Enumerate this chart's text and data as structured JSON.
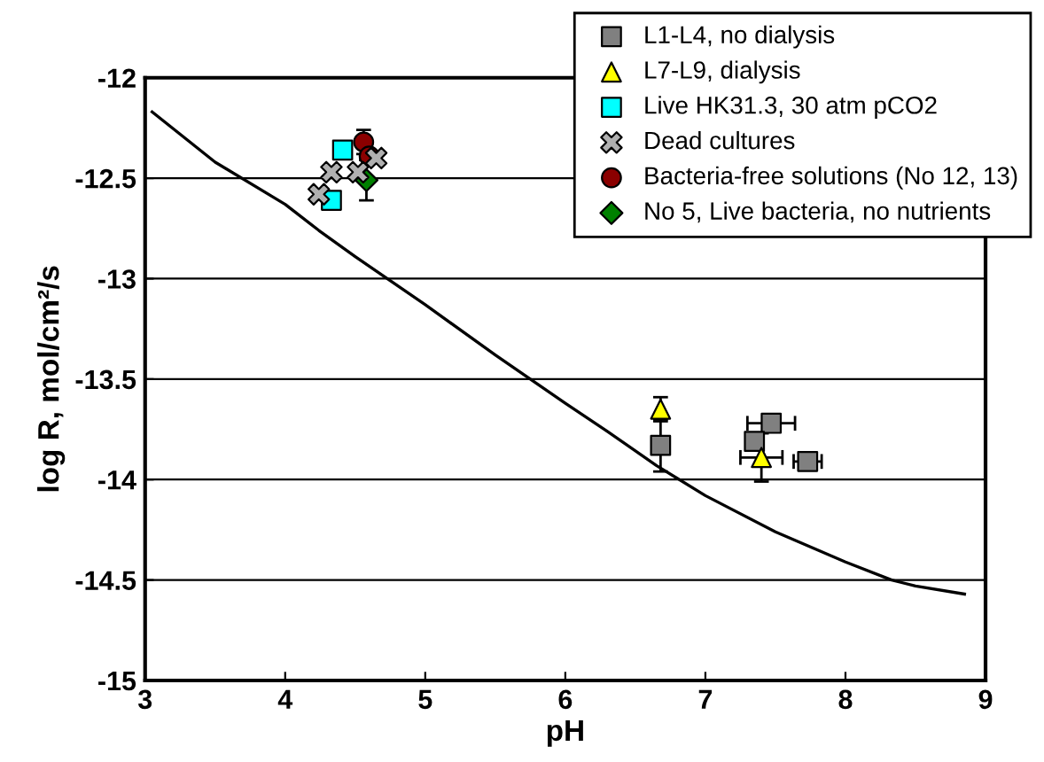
{
  "chart_data": {
    "type": "scatter",
    "xlabel": "pH",
    "ylabel": "log R, mol/cm²/s",
    "xlim": [
      3,
      9
    ],
    "ylim": [
      -15,
      -12
    ],
    "xticks": [
      3,
      4,
      5,
      6,
      7,
      8,
      9
    ],
    "yticks": [
      -15,
      -14.5,
      -14,
      -13.5,
      -13,
      -12.5,
      -12
    ],
    "grid": "y",
    "legend": "top right",
    "series": [
      {
        "name": "L1-L4, no dialysis",
        "color": "#808080",
        "marker": "square",
        "x": [
          6.68,
          7.47,
          7.35,
          7.73
        ],
        "values": [
          -13.83,
          -13.72,
          -13.81,
          -13.91
        ],
        "errors": [
          0.13,
          null,
          null,
          null
        ],
        "xerrors": [
          0.05,
          0.17,
          0.05,
          0.1
        ]
      },
      {
        "name": "L7-L9, dialysis",
        "color": "#ffff00",
        "marker": "triangle",
        "x": [
          6.68,
          7.4
        ],
        "values": [
          -13.65,
          -13.89
        ],
        "errors": [
          0.06,
          0.12
        ],
        "xerrors": [
          null,
          0.15
        ]
      },
      {
        "name": "Live HK31.3, 30 atm pCO2",
        "color": "#00ffff",
        "marker": "square",
        "x": [
          4.41,
          4.33
        ],
        "values": [
          -12.36,
          -12.61
        ]
      },
      {
        "name": "Dead cultures",
        "color": "#b0b0b0",
        "marker": "cross",
        "x": [
          4.33,
          4.24,
          4.52,
          4.65
        ],
        "values": [
          -12.47,
          -12.58,
          -12.47,
          -12.4
        ]
      },
      {
        "name": "Bacteria-free solutions (No 12, 13)",
        "color": "#8b0000",
        "marker": "circle",
        "x": [
          4.56,
          4.6
        ],
        "values": [
          -12.32,
          -12.39
        ],
        "errors": [
          0.06,
          null
        ]
      },
      {
        "name": "No 5, Live bacteria, no nutrients",
        "color": "#008000",
        "marker": "diamond",
        "x": [
          4.58
        ],
        "values": [
          -12.51
        ],
        "errors": [
          0.1
        ]
      },
      {
        "type": "line",
        "color": "#000000",
        "marker": "none",
        "x": [
          3.05,
          3.5,
          4.0,
          4.24,
          4.5,
          5.0,
          5.5,
          6.0,
          6.3,
          6.65,
          7.0,
          7.5,
          8.0,
          8.33,
          8.5,
          8.85
        ],
        "values": [
          -12.17,
          -12.42,
          -12.63,
          -12.76,
          -12.89,
          -13.13,
          -13.38,
          -13.62,
          -13.76,
          -13.93,
          -14.08,
          -14.26,
          -14.41,
          -14.5,
          -14.53,
          -14.57
        ]
      }
    ]
  }
}
